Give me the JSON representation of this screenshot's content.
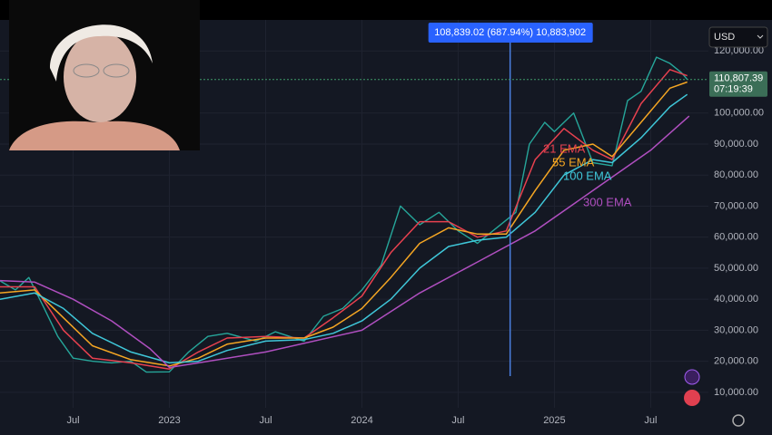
{
  "chart_data": {
    "type": "line",
    "currency": "USD",
    "xlim": [
      2022.12,
      2025.8
    ],
    "xticks": [
      {
        "value": 2022.5,
        "label": "Jul"
      },
      {
        "value": 2023,
        "label": "2023"
      },
      {
        "value": 2023.5,
        "label": "Jul"
      },
      {
        "value": 2024,
        "label": "2024"
      },
      {
        "value": 2024.5,
        "label": "Jul"
      },
      {
        "value": 2025,
        "label": "2025"
      },
      {
        "value": 2025.5,
        "label": "Jul"
      }
    ],
    "ylim": [
      5000,
      130000
    ],
    "yticks": [
      {
        "value": 10000,
        "label": "10,000.00"
      },
      {
        "value": 20000,
        "label": "20,000.00"
      },
      {
        "value": 30000,
        "label": "30,000.00"
      },
      {
        "value": 40000,
        "label": "40,000.00"
      },
      {
        "value": 50000,
        "label": "50,000.00"
      },
      {
        "value": 60000,
        "label": "60,000.00"
      },
      {
        "value": 70000,
        "label": "70,000.00"
      },
      {
        "value": 80000,
        "label": "80,000.00"
      },
      {
        "value": 90000,
        "label": "90,000.00"
      },
      {
        "value": 100000,
        "label": "100,000.00"
      },
      {
        "value": 120000,
        "label": "120,000.00"
      }
    ],
    "grid": true,
    "series": [
      {
        "color": "#26a69a",
        "x": [
          2022.12,
          2022.2,
          2022.27,
          2022.35,
          2022.42,
          2022.5,
          2022.6,
          2022.7,
          2022.8,
          2022.88,
          2023.0,
          2023.1,
          2023.2,
          2023.3,
          2023.45,
          2023.55,
          2023.7,
          2023.8,
          2023.9,
          2024.0,
          2024.1,
          2024.2,
          2024.3,
          2024.4,
          2024.5,
          2024.6,
          2024.7,
          2024.8,
          2024.87,
          2024.95,
          2025.0,
          2025.1,
          2025.2,
          2025.3,
          2025.38,
          2025.45,
          2025.53,
          2025.6,
          2025.66,
          2025.69
        ],
        "values": [
          45900,
          43000,
          47000,
          37000,
          28000,
          21000,
          20000,
          19500,
          20000,
          16500,
          16600,
          23000,
          28000,
          29000,
          26500,
          29500,
          26500,
          34500,
          37000,
          43000,
          51000,
          70000,
          64000,
          68000,
          62000,
          58000,
          63000,
          68000,
          90000,
          97000,
          94000,
          100000,
          84000,
          83000,
          104000,
          107000,
          118000,
          116000,
          113000,
          110807
        ]
      },
      {
        "name": "21 EMA",
        "color": "#e8414f",
        "x": [
          2022.12,
          2022.3,
          2022.45,
          2022.6,
          2022.8,
          2023.0,
          2023.15,
          2023.3,
          2023.5,
          2023.7,
          2023.85,
          2024.0,
          2024.15,
          2024.3,
          2024.45,
          2024.6,
          2024.75,
          2024.9,
          2025.05,
          2025.2,
          2025.3,
          2025.45,
          2025.6,
          2025.69
        ],
        "values": [
          44000,
          44000,
          30000,
          21000,
          19500,
          17500,
          23000,
          27500,
          28000,
          27500,
          34000,
          41000,
          55000,
          65000,
          65000,
          60000,
          62000,
          85000,
          95000,
          88000,
          85000,
          103000,
          114000,
          112000
        ]
      },
      {
        "name": "55 EMA",
        "color": "#f5a623",
        "x": [
          2022.12,
          2022.3,
          2022.45,
          2022.6,
          2022.8,
          2023.0,
          2023.15,
          2023.3,
          2023.5,
          2023.7,
          2023.85,
          2024.0,
          2024.15,
          2024.3,
          2024.45,
          2024.6,
          2024.75,
          2024.9,
          2025.05,
          2025.2,
          2025.3,
          2025.45,
          2025.6,
          2025.69
        ],
        "values": [
          42000,
          43000,
          34000,
          25000,
          20500,
          18500,
          21000,
          25500,
          27500,
          27500,
          31000,
          37000,
          47000,
          58000,
          63000,
          61000,
          61000,
          75000,
          88000,
          90000,
          86000,
          97000,
          108000,
          110000
        ]
      },
      {
        "name": "100 EMA",
        "color": "#3fc7d9",
        "x": [
          2022.12,
          2022.3,
          2022.45,
          2022.6,
          2022.8,
          2023.0,
          2023.15,
          2023.3,
          2023.5,
          2023.7,
          2023.85,
          2024.0,
          2024.15,
          2024.3,
          2024.45,
          2024.6,
          2024.75,
          2024.9,
          2025.05,
          2025.2,
          2025.3,
          2025.45,
          2025.6,
          2025.69
        ],
        "values": [
          40000,
          42000,
          37000,
          29000,
          23000,
          19500,
          20000,
          23500,
          26500,
          27000,
          29000,
          33000,
          40000,
          50000,
          57000,
          59000,
          60000,
          68000,
          80000,
          85000,
          84000,
          92000,
          102000,
          106000
        ]
      },
      {
        "name": "300 EMA",
        "color": "#b04fc0",
        "x": [
          2022.12,
          2022.3,
          2022.5,
          2022.7,
          2022.9,
          2023.0,
          2023.5,
          2024.0,
          2024.3,
          2024.6,
          2024.9,
          2025.2,
          2025.5,
          2025.7
        ],
        "values": [
          46000,
          45500,
          40000,
          33000,
          24000,
          18000,
          23000,
          30000,
          42000,
          52000,
          62000,
          75000,
          88000,
          99000
        ]
      }
    ],
    "measure": {
      "x": 2024.77,
      "label": "108,839.02 (687.94%) 10,883,902"
    },
    "current_price": {
      "value": 110807.39,
      "label": "110,807.39",
      "countdown": "07:19:39"
    }
  }
}
